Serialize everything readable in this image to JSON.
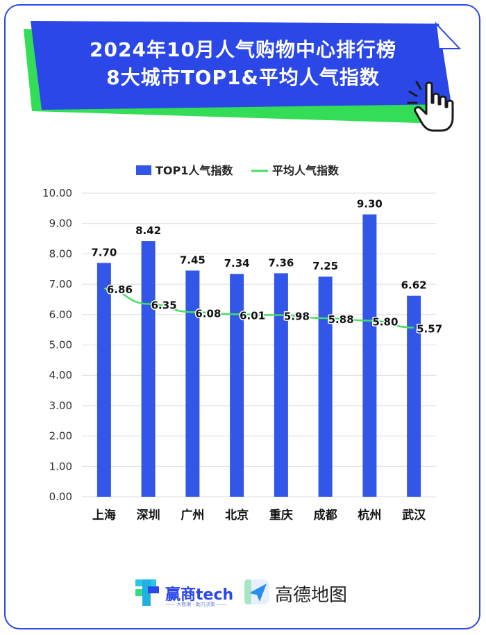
{
  "header": {
    "title_line1": "2024年10月人气购物中心排行榜",
    "title_line2": "8大城市TOP1&平均人气指数",
    "banner_color": "#2b47e8",
    "shadow_color": "#33dd55",
    "cursor_icon": "hand-pointer-icon"
  },
  "chart_data": {
    "type": "bar",
    "categories": [
      "上海",
      "深圳",
      "广州",
      "北京",
      "重庆",
      "成都",
      "杭州",
      "武汉"
    ],
    "series": [
      {
        "name": "TOP1人气指数",
        "type": "bar",
        "color": "#3257e8",
        "values": [
          7.7,
          8.42,
          7.45,
          7.34,
          7.36,
          7.25,
          9.3,
          6.62
        ],
        "labels": [
          "7.70",
          "8.42",
          "7.45",
          "7.34",
          "7.36",
          "7.25",
          "9.30",
          "6.62"
        ]
      },
      {
        "name": "平均人气指数",
        "type": "line",
        "color": "#44dd66",
        "values": [
          6.86,
          6.35,
          6.08,
          6.01,
          5.98,
          5.88,
          5.8,
          5.57
        ],
        "labels": [
          "6.86",
          "6.35",
          "6.08",
          "6.01",
          "5.98",
          "5.88",
          "5.80",
          "5.57"
        ]
      }
    ],
    "ylim": [
      0,
      10
    ],
    "yticks": [
      "0.00",
      "1.00",
      "2.00",
      "3.00",
      "4.00",
      "5.00",
      "6.00",
      "7.00",
      "8.00",
      "9.00",
      "10.00"
    ],
    "grid": true,
    "legend_position": "top-center"
  },
  "footer": {
    "logo1_text": "赢商tech",
    "logo1_subtext": "—— 大数据 · 助力决策 ——",
    "logo2_text": "高德地图",
    "logo1_icon": "yingshang-tech-logo-icon",
    "logo2_icon": "amap-logo-icon"
  }
}
